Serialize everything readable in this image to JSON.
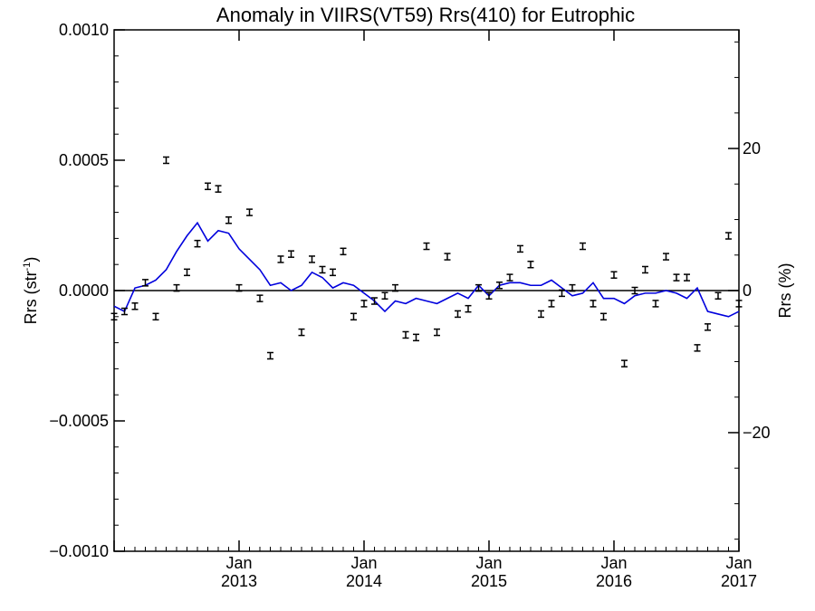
{
  "chart_data": {
    "type": "scatter",
    "title": "Anomaly in VIIRS(VT59) Rrs(410) for Eutrophic",
    "ylabel": "Rrs (str",
    "ylabel_superscript": "-1",
    "ylabel_suffix": ")",
    "y2label": "Rrs (%)",
    "ylim": [
      -0.001,
      0.001
    ],
    "y2lim": [
      -36.7,
      36.7
    ],
    "xlim": [
      "2012-01",
      "2017-01"
    ],
    "y_ticks": [
      "0.0010",
      "0.0005",
      "0.0000",
      "−0.0005",
      "−0.0010"
    ],
    "y_tick_values": [
      0.001,
      0.0005,
      0,
      -0.0005,
      -0.001
    ],
    "y2_ticks": [
      "20",
      "0",
      "−20"
    ],
    "y2_tick_values": [
      20,
      0,
      -20
    ],
    "x_ticks": [
      {
        "month": "Jan",
        "year": "2013"
      },
      {
        "month": "Jan",
        "year": "2014"
      },
      {
        "month": "Jan",
        "year": "2015"
      },
      {
        "month": "Jan",
        "year": "2016"
      },
      {
        "month": "Jan",
        "year": "2017"
      }
    ],
    "x_tick_dates": [
      "2013-01",
      "2014-01",
      "2015-01",
      "2016-01",
      "2017-01"
    ],
    "zero_line": true,
    "grid": false,
    "series": [
      {
        "kind": "errorbar-points",
        "color": "#000000",
        "x": [
          "2012-01",
          "2012-02",
          "2012-03",
          "2012-04",
          "2012-05",
          "2012-06",
          "2012-07",
          "2012-08",
          "2012-09",
          "2012-10",
          "2012-11",
          "2012-12",
          "2013-01",
          "2013-02",
          "2013-03",
          "2013-04",
          "2013-05",
          "2013-06",
          "2013-07",
          "2013-08",
          "2013-09",
          "2013-10",
          "2013-11",
          "2013-12",
          "2014-01",
          "2014-02",
          "2014-03",
          "2014-04",
          "2014-05",
          "2014-06",
          "2014-07",
          "2014-08",
          "2014-09",
          "2014-10",
          "2014-11",
          "2014-12",
          "2015-01",
          "2015-02",
          "2015-03",
          "2015-04",
          "2015-05",
          "2015-06",
          "2015-07",
          "2015-08",
          "2015-09",
          "2015-10",
          "2015-11",
          "2015-12",
          "2016-01",
          "2016-02",
          "2016-03",
          "2016-04",
          "2016-05",
          "2016-06",
          "2016-07",
          "2016-08",
          "2016-09",
          "2016-10",
          "2016-11",
          "2016-12",
          "2017-01"
        ],
        "y": [
          -0.0001,
          -8e-05,
          -6e-05,
          3e-05,
          -0.0001,
          0.0005,
          1e-05,
          7e-05,
          0.00018,
          0.0004,
          0.00039,
          0.00027,
          1e-05,
          0.0003,
          -3e-05,
          -0.00025,
          0.00012,
          0.00014,
          -0.00016,
          0.00012,
          8e-05,
          7e-05,
          0.00015,
          -0.0001,
          -5e-05,
          -4e-05,
          -2e-05,
          1e-05,
          -0.00017,
          -0.00018,
          0.00017,
          -0.00016,
          0.00013,
          -9e-05,
          -7e-05,
          1e-05,
          -2e-05,
          2e-05,
          5e-05,
          0.00016,
          0.0001,
          -9e-05,
          -5e-05,
          -1e-05,
          1e-05,
          0.00017,
          -5e-05,
          -0.0001,
          6e-05,
          -0.00028,
          0.0,
          8e-05,
          -5e-05,
          0.00013,
          5e-05,
          5e-05,
          -0.00022,
          -0.00014,
          -2e-05,
          0.00021,
          -5e-05
        ]
      },
      {
        "kind": "line",
        "color": "#0000dd",
        "x": [
          "2012-01",
          "2012-02",
          "2012-03",
          "2012-04",
          "2012-05",
          "2012-06",
          "2012-07",
          "2012-08",
          "2012-09",
          "2012-10",
          "2012-11",
          "2012-12",
          "2013-01",
          "2013-02",
          "2013-03",
          "2013-04",
          "2013-05",
          "2013-06",
          "2013-07",
          "2013-08",
          "2013-09",
          "2013-10",
          "2013-11",
          "2013-12",
          "2014-01",
          "2014-02",
          "2014-03",
          "2014-04",
          "2014-05",
          "2014-06",
          "2014-07",
          "2014-08",
          "2014-09",
          "2014-10",
          "2014-11",
          "2014-12",
          "2015-01",
          "2015-02",
          "2015-03",
          "2015-04",
          "2015-05",
          "2015-06",
          "2015-07",
          "2015-08",
          "2015-09",
          "2015-10",
          "2015-11",
          "2015-12",
          "2016-01",
          "2016-02",
          "2016-03",
          "2016-04",
          "2016-05",
          "2016-06",
          "2016-07",
          "2016-08",
          "2016-09",
          "2016-10",
          "2016-11",
          "2016-12",
          "2017-01"
        ],
        "y": [
          -6e-05,
          -8e-05,
          1e-05,
          2e-05,
          4e-05,
          8e-05,
          0.00015,
          0.00021,
          0.00026,
          0.00019,
          0.00023,
          0.00022,
          0.00016,
          0.00012,
          8e-05,
          2e-05,
          3e-05,
          0.0,
          2e-05,
          7e-05,
          5e-05,
          1e-05,
          3e-05,
          2e-05,
          -1e-05,
          -4e-05,
          -8e-05,
          -4e-05,
          -5e-05,
          -3e-05,
          -4e-05,
          -5e-05,
          -3e-05,
          -1e-05,
          -3e-05,
          2e-05,
          -2e-05,
          2e-05,
          3e-05,
          3e-05,
          2e-05,
          2e-05,
          4e-05,
          1e-05,
          -2e-05,
          -1e-05,
          3e-05,
          -3e-05,
          -3e-05,
          -5e-05,
          -2e-05,
          -1e-05,
          -1e-05,
          0.0,
          -1e-05,
          -3e-05,
          1e-05,
          -8e-05,
          -9e-05,
          -0.0001,
          -8e-05
        ]
      }
    ]
  }
}
